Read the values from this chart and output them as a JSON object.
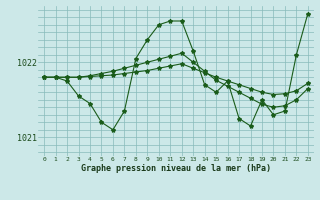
{
  "title": "Graphe pression niveau de la mer (hPa)",
  "bg_color": "#cce8e8",
  "grid_color": "#88bbbb",
  "line_color": "#1a5c1a",
  "xlim": [
    -0.5,
    23.5
  ],
  "ylim": [
    1020.75,
    1022.75
  ],
  "yticks": [
    1021,
    1022
  ],
  "xtick_labels": [
    "0",
    "1",
    "2",
    "3",
    "4",
    "5",
    "6",
    "7",
    "8",
    "9",
    "10",
    "11",
    "12",
    "13",
    "14",
    "15",
    "16",
    "17",
    "18",
    "19",
    "20",
    "21",
    "22",
    "23"
  ],
  "series1": [
    1021.8,
    1021.8,
    1021.75,
    1021.55,
    1021.45,
    1021.2,
    1021.1,
    1021.35,
    1022.05,
    1022.3,
    1022.5,
    1022.55,
    1022.55,
    1022.15,
    1021.7,
    1021.6,
    1021.75,
    1021.25,
    1021.15,
    1021.5,
    1021.3,
    1021.35,
    1022.1,
    1022.65
  ],
  "series2": [
    1021.8,
    1021.8,
    1021.8,
    1021.8,
    1021.82,
    1021.85,
    1021.88,
    1021.92,
    1021.96,
    1022.0,
    1022.04,
    1022.08,
    1022.12,
    1022.0,
    1021.88,
    1021.76,
    1021.68,
    1021.6,
    1021.52,
    1021.44,
    1021.4,
    1021.42,
    1021.5,
    1021.65
  ],
  "series3": [
    1021.8,
    1021.8,
    1021.8,
    1021.8,
    1021.81,
    1021.82,
    1021.83,
    1021.85,
    1021.87,
    1021.89,
    1021.92,
    1021.95,
    1021.98,
    1021.92,
    1021.86,
    1021.8,
    1021.75,
    1021.7,
    1021.65,
    1021.6,
    1021.57,
    1021.58,
    1021.62,
    1021.72
  ]
}
